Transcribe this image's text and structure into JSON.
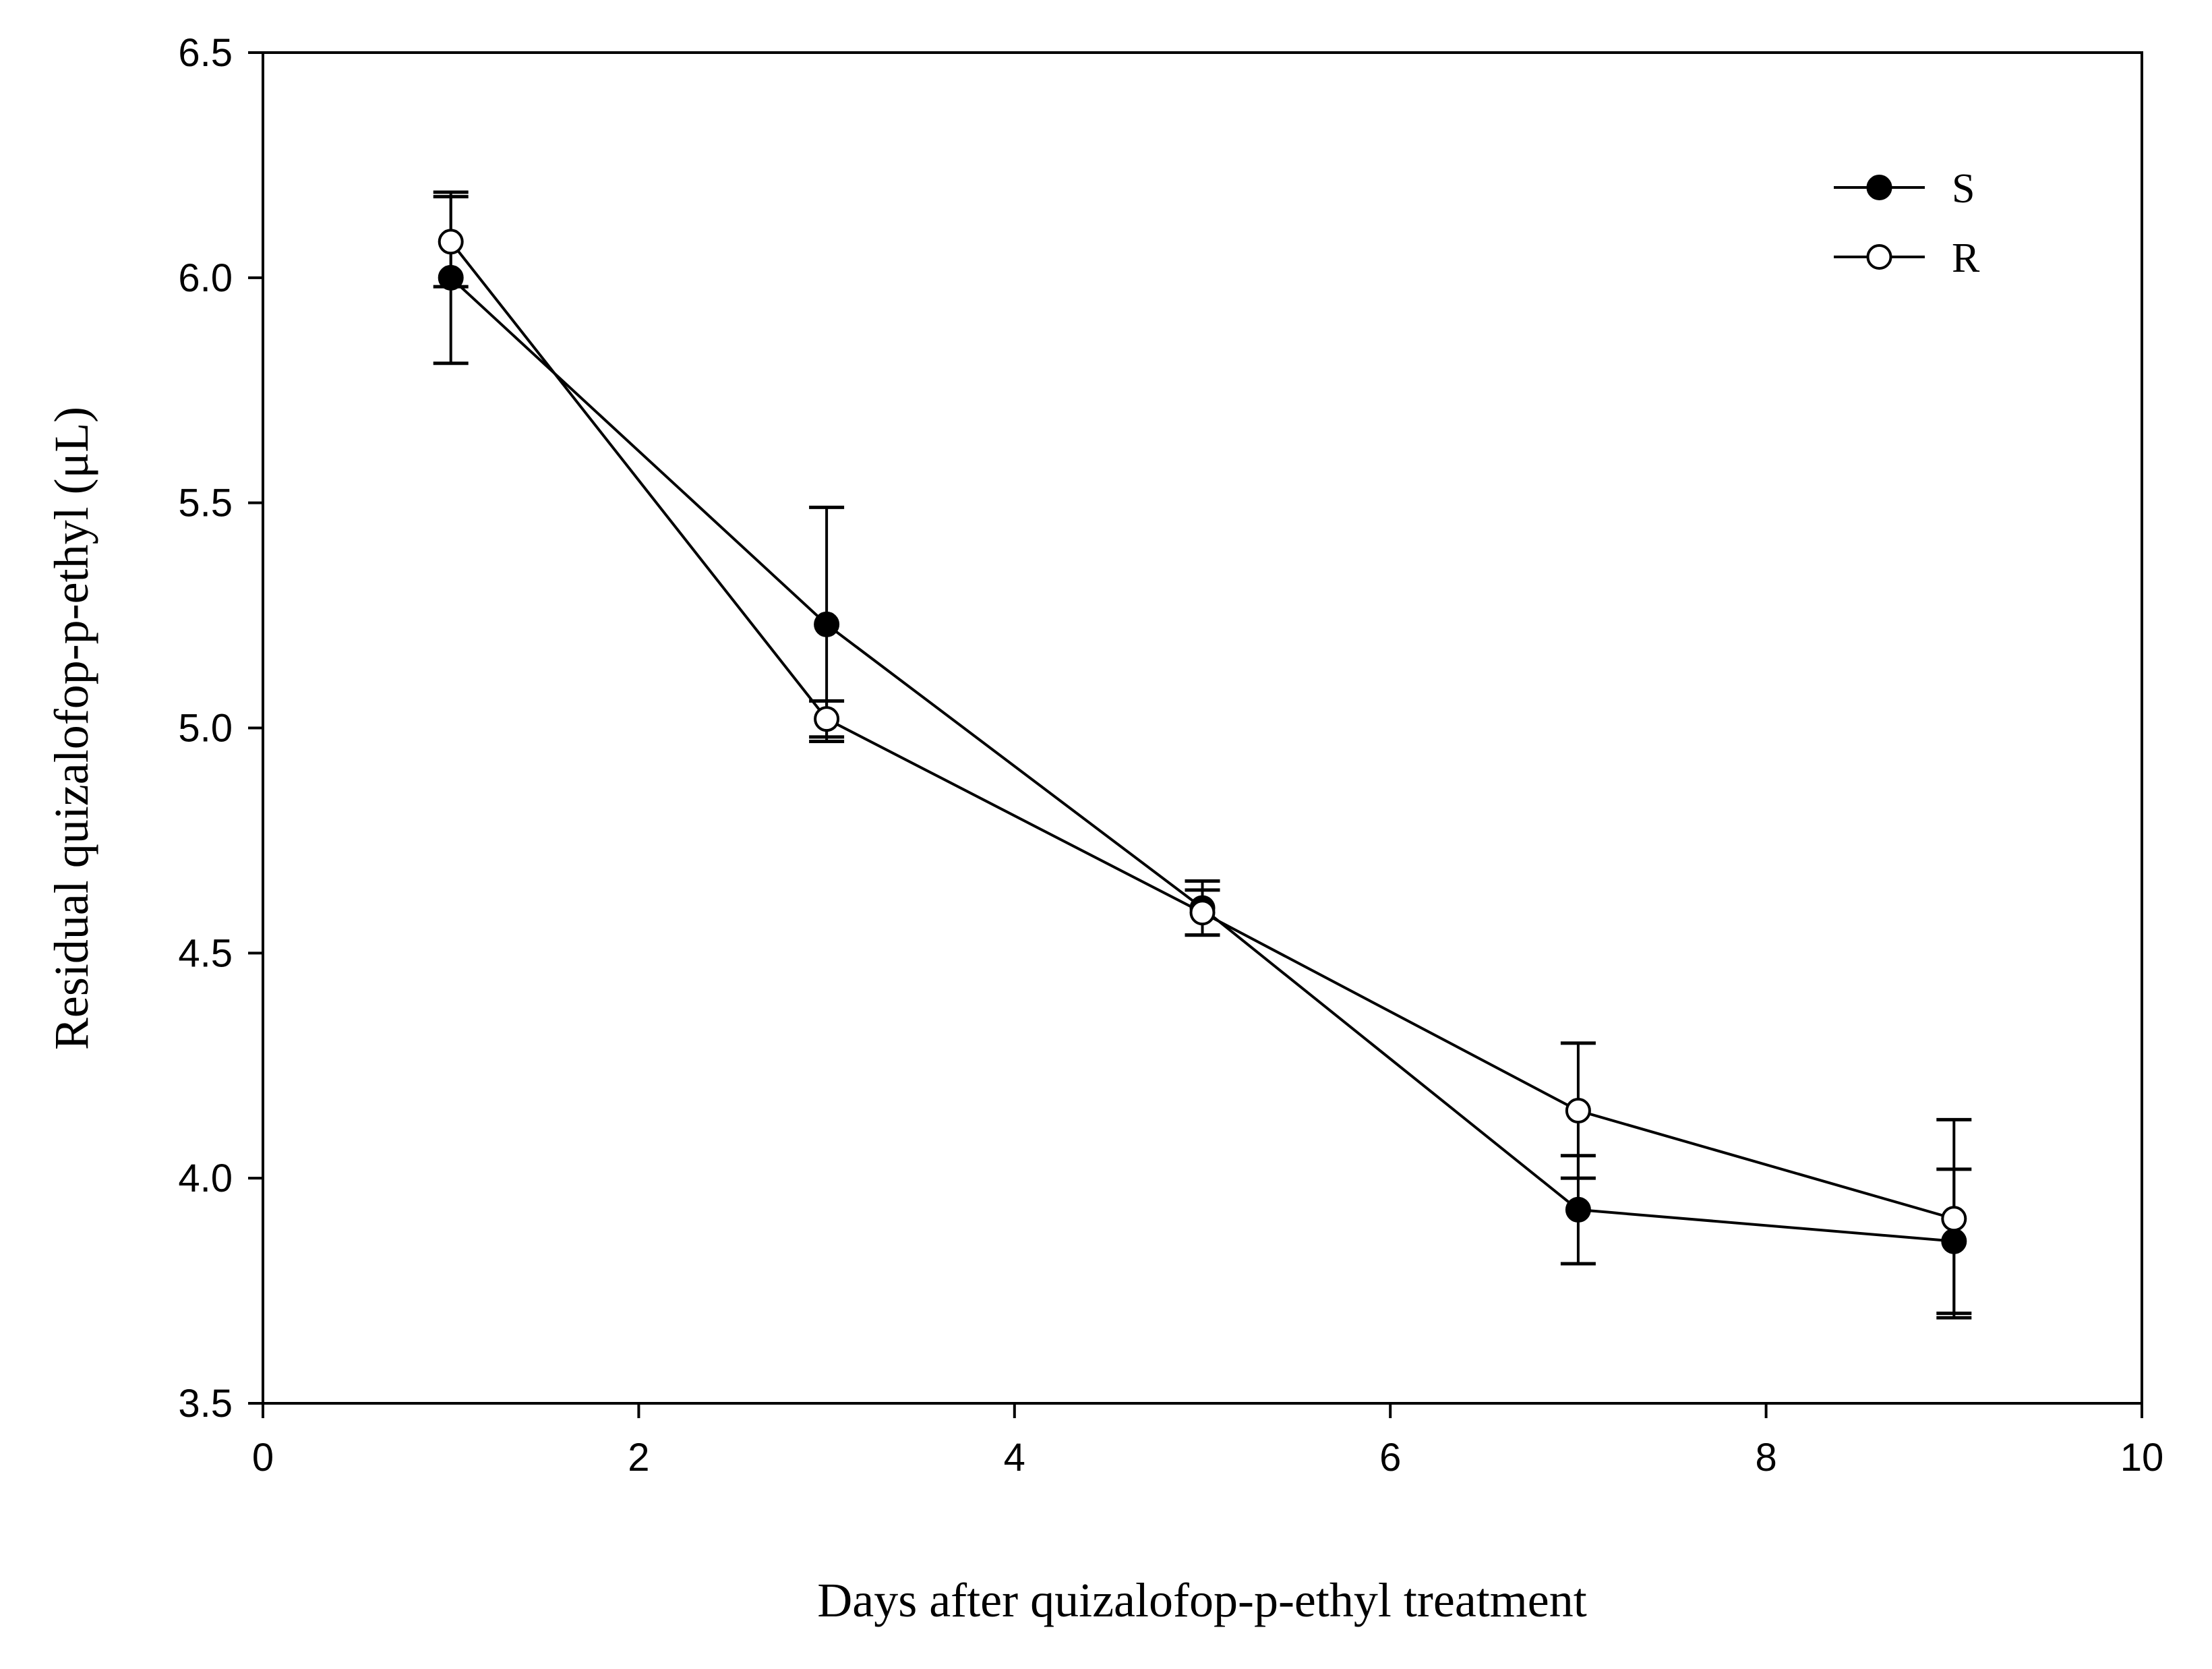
{
  "chart_data": {
    "type": "line",
    "title": "",
    "xlabel": "Days after quizalofop-p-ethyl treatment",
    "ylabel": "Residual quizalofop-p-ethyl (μL)",
    "xlim": [
      0,
      10
    ],
    "ylim": [
      3.5,
      6.5
    ],
    "xticks": [
      0,
      2,
      4,
      6,
      8,
      10
    ],
    "xtick_labels": [
      "0",
      "2",
      "4",
      "6",
      "8",
      "10"
    ],
    "yticks": [
      3.5,
      4.0,
      4.5,
      5.0,
      5.5,
      6.0,
      6.5
    ],
    "ytick_labels": [
      "3.5",
      "4.0",
      "4.5",
      "5.0",
      "5.5",
      "6.0",
      "6.5"
    ],
    "grid": false,
    "legend_position": "top-right",
    "x": [
      1,
      3,
      5,
      7,
      9
    ],
    "series": [
      {
        "name": "S",
        "marker": "filled-circle",
        "values": [
          6.0,
          5.23,
          4.6,
          3.93,
          3.86
        ],
        "errors": [
          0.19,
          0.26,
          0.06,
          0.12,
          0.16
        ]
      },
      {
        "name": "R",
        "marker": "open-circle",
        "values": [
          6.08,
          5.02,
          4.59,
          4.15,
          3.91
        ],
        "errors": [
          0.1,
          0.04,
          0.05,
          0.15,
          0.22
        ]
      }
    ],
    "colors": {
      "line": "#000000",
      "y_label": "#7a4a1e",
      "background": "#ffffff"
    }
  }
}
